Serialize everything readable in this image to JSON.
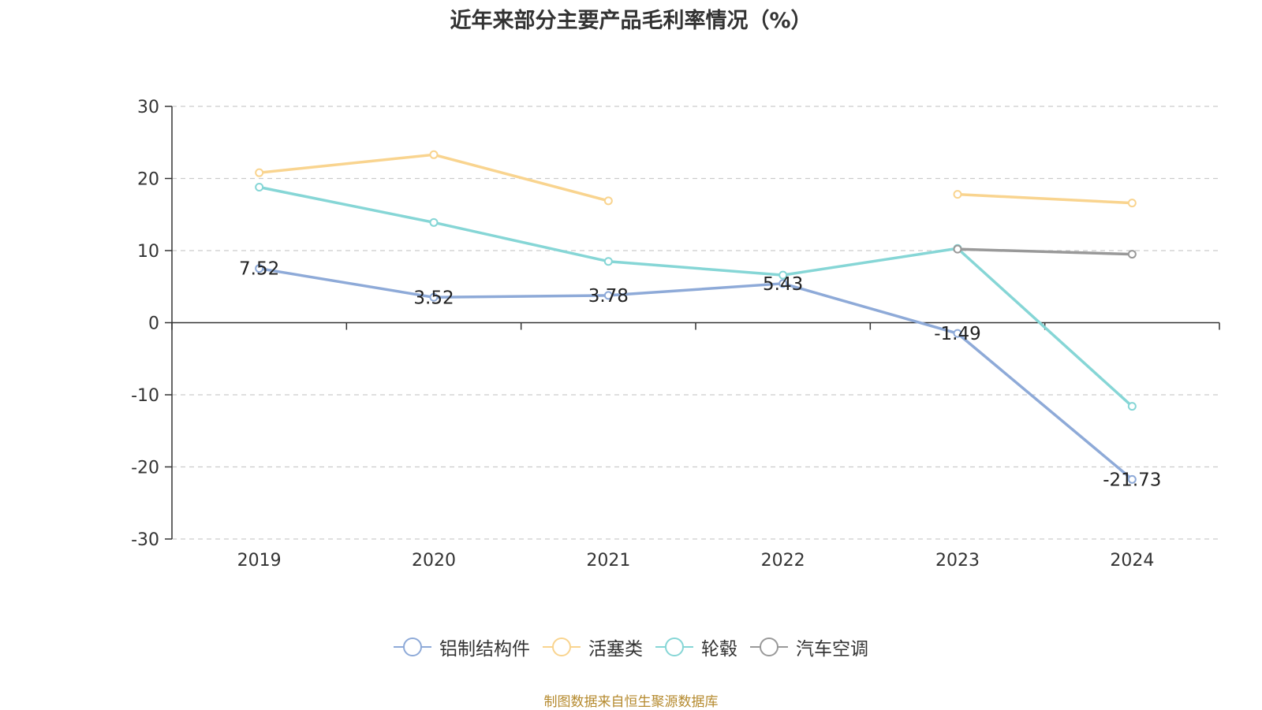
{
  "chart_data": {
    "type": "line",
    "title": "近年来部分主要产品毛利率情况（%）",
    "xlabel": "",
    "ylabel": "",
    "categories": [
      "2019",
      "2020",
      "2021",
      "2022",
      "2023",
      "2024"
    ],
    "ylim": [
      -30,
      30
    ],
    "yticks": [
      30,
      20,
      10,
      0,
      -10,
      -20,
      -30
    ],
    "grid": true,
    "legend_position": "bottom",
    "series": [
      {
        "name": "铝制结构件",
        "color": "#8eaad8",
        "values": [
          7.52,
          3.52,
          3.78,
          5.43,
          -1.49,
          -21.73
        ],
        "show_labels": true
      },
      {
        "name": "活塞类",
        "color": "#f9d48f",
        "values": [
          20.8,
          23.3,
          16.9,
          null,
          17.8,
          16.6
        ],
        "show_labels": false
      },
      {
        "name": "轮毂",
        "color": "#86d6d6",
        "values": [
          18.8,
          13.9,
          8.5,
          6.6,
          10.3,
          -11.6
        ],
        "show_labels": false
      },
      {
        "name": "汽车空调",
        "color": "#999999",
        "values": [
          null,
          null,
          null,
          null,
          10.2,
          9.5
        ],
        "show_labels": false
      }
    ]
  },
  "source_note": "制图数据来自恒生聚源数据库"
}
